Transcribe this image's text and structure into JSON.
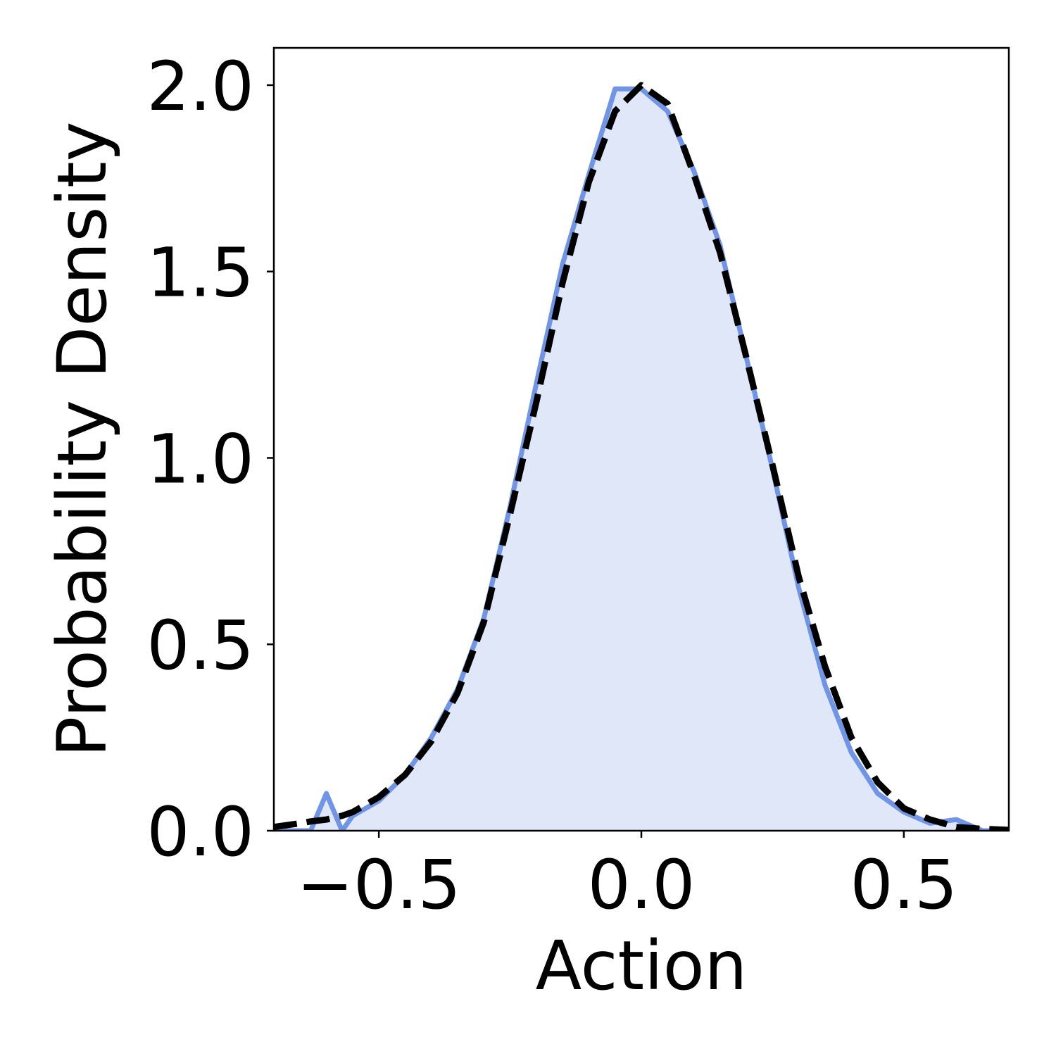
{
  "chart_data": {
    "type": "line",
    "xlabel": "Action",
    "ylabel": "Probability Density",
    "x": [
      -0.7,
      -0.65,
      -0.63,
      -0.6,
      -0.57,
      -0.55,
      -0.5,
      -0.45,
      -0.4,
      -0.35,
      -0.3,
      -0.25,
      -0.2,
      -0.15,
      -0.1,
      -0.05,
      0,
      0.05,
      0.1,
      0.15,
      0.2,
      0.25,
      0.3,
      0.35,
      0.4,
      0.45,
      0.5,
      0.55,
      0.6,
      0.65,
      0.7
    ],
    "series": [
      {
        "color": "#7094e6",
        "fill": "#dfe7f9",
        "dash": false,
        "values": [
          0,
          0,
          0,
          0.1,
          0,
          0.04,
          0.08,
          0.15,
          0.25,
          0.38,
          0.57,
          0.87,
          1.2,
          1.52,
          1.76,
          1.99,
          1.99,
          1.93,
          1.77,
          1.57,
          1.27,
          0.97,
          0.65,
          0.39,
          0.21,
          0.1,
          0.05,
          0.02,
          0.03,
          0,
          0
        ]
      },
      {
        "color": "#000000",
        "dash": true,
        "values": [
          0.01,
          0.02,
          0.025,
          0.03,
          0.04,
          0.05,
          0.09,
          0.15,
          0.24,
          0.37,
          0.56,
          0.85,
          1.15,
          1.47,
          1.74,
          1.93,
          2.0,
          1.95,
          1.76,
          1.55,
          1.27,
          0.98,
          0.68,
          0.44,
          0.25,
          0.13,
          0.06,
          0.03,
          0.01,
          0.005,
          0.002
        ]
      }
    ],
    "xlim": [
      -0.7,
      0.7
    ],
    "ylim": [
      0,
      2.1
    ],
    "xticks": [
      {
        "value": -0.5,
        "label": "−0.5"
      },
      {
        "value": 0,
        "label": "0.0"
      },
      {
        "value": 0.5,
        "label": "0.5"
      }
    ],
    "yticks": [
      {
        "value": 0,
        "label": "0.0"
      },
      {
        "value": 0.5,
        "label": "0.5"
      },
      {
        "value": 1,
        "label": "1.0"
      },
      {
        "value": 1.5,
        "label": "1.5"
      },
      {
        "value": 2,
        "label": "2.0"
      }
    ],
    "grid": false
  }
}
